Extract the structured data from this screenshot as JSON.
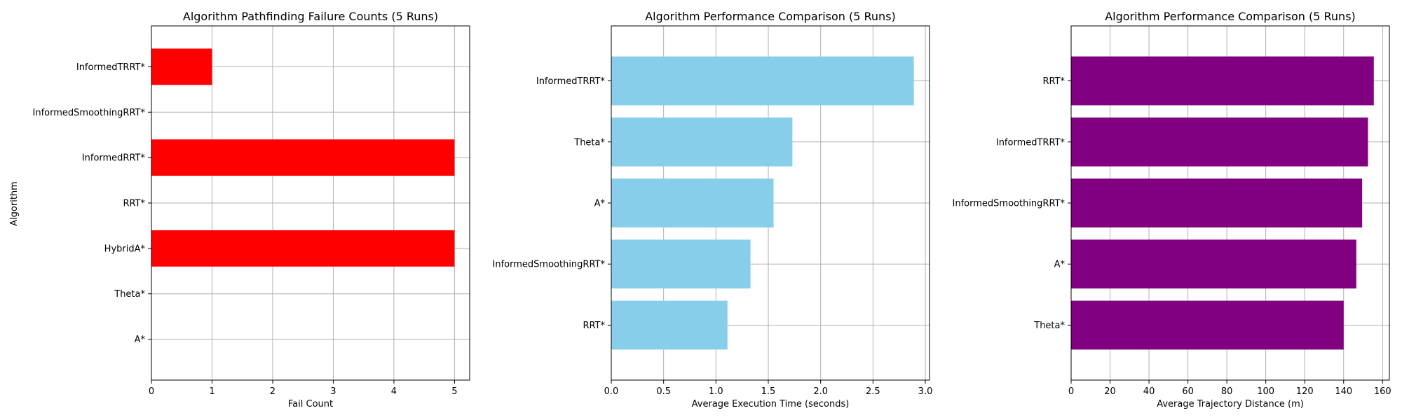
{
  "chart_data": [
    {
      "type": "bar",
      "orientation": "horizontal",
      "title": "Algorithm Pathfinding Failure Counts (5 Runs)",
      "xlabel": "Fail Count",
      "ylabel": "Algorithm",
      "categories": [
        "A*",
        "Theta*",
        "HybridA*",
        "RRT*",
        "InformedRRT*",
        "InformedSmoothingRRT*",
        "InformedTRRT*"
      ],
      "values": [
        0,
        0,
        5,
        0,
        5,
        0,
        1
      ],
      "xlim": [
        0,
        5.25
      ],
      "xticks": [
        0,
        1,
        2,
        3,
        4,
        5
      ],
      "xtick_labels": [
        "0",
        "1",
        "2",
        "3",
        "4",
        "5"
      ],
      "bar_color": "#ff0000",
      "grid": true
    },
    {
      "type": "bar",
      "orientation": "horizontal",
      "title": "Algorithm Performance Comparison (5 Runs)",
      "xlabel": "Average Execution Time (seconds)",
      "ylabel": "",
      "categories": [
        "RRT*",
        "InformedSmoothingRRT*",
        "A*",
        "Theta*",
        "InformedTRRT*"
      ],
      "values": [
        1.11,
        1.33,
        1.55,
        1.73,
        2.89
      ],
      "xlim": [
        0,
        3.04
      ],
      "xticks": [
        0,
        0.5,
        1.0,
        1.5,
        2.0,
        2.5,
        3.0
      ],
      "xtick_labels": [
        "0.0",
        "0.5",
        "1.0",
        "1.5",
        "2.0",
        "2.5",
        "3.0"
      ],
      "bar_color": "#87ceeb",
      "grid": true
    },
    {
      "type": "bar",
      "orientation": "horizontal",
      "title": "Algorithm Performance Comparison (5 Runs)",
      "xlabel": "Average Trajectory Distance (m)",
      "ylabel": "",
      "categories": [
        "Theta*",
        "A*",
        "InformedSmoothingRRT*",
        "InformedTRRT*",
        "RRT*"
      ],
      "values": [
        140,
        146.5,
        149.5,
        152.5,
        155.5
      ],
      "xlim": [
        0,
        163.5
      ],
      "xticks": [
        0,
        20,
        40,
        60,
        80,
        100,
        120,
        140,
        160
      ],
      "xtick_labels": [
        "0",
        "20",
        "40",
        "60",
        "80",
        "100",
        "120",
        "140",
        "160"
      ],
      "bar_color": "#800080",
      "grid": true
    }
  ]
}
